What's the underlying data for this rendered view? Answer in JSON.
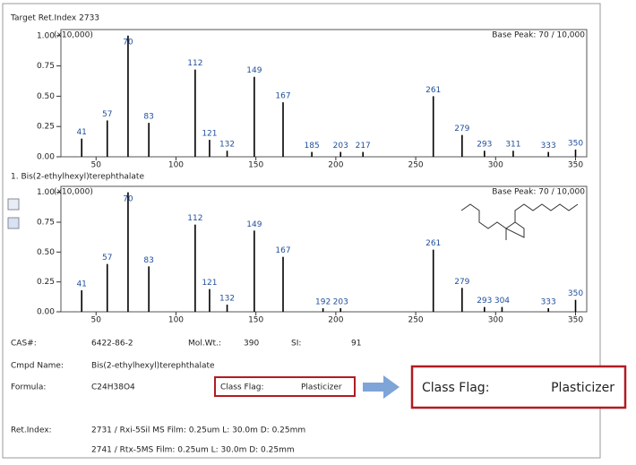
{
  "chart_data": [
    {
      "type": "bar",
      "header": "Target    Ret.Index    2733",
      "scale_label": "(x10,000)",
      "annotation": "Base Peak: 70 / 10,000",
      "x": [
        41,
        57,
        70,
        83,
        112,
        121,
        132,
        149,
        167,
        185,
        203,
        217,
        261,
        279,
        293,
        311,
        333,
        350
      ],
      "values": [
        0.15,
        0.3,
        1.0,
        0.28,
        0.72,
        0.14,
        0.05,
        0.66,
        0.45,
        0.04,
        0.04,
        0.04,
        0.5,
        0.18,
        0.05,
        0.05,
        0.04,
        0.06
      ],
      "color": "#000000",
      "label_color": "#1f4e9c",
      "xlim": [
        28,
        357
      ],
      "ylim": [
        0,
        1.05
      ],
      "xticks": [
        50,
        100,
        150,
        200,
        250,
        300,
        350
      ],
      "yticks": [
        {
          "value": 0,
          "label": "0.00"
        },
        0.25,
        {
          "value": 0.5,
          "label": "0.50"
        },
        0.75,
        {
          "value": 1,
          "label": "1.00"
        }
      ]
    },
    {
      "type": "bar",
      "header": "1. Bis(2-ethylhexyl)terephthalate",
      "scale_label": "(x10,000)",
      "annotation": "Base Peak: 70 / 10,000",
      "x": [
        41,
        57,
        70,
        83,
        112,
        121,
        132,
        149,
        167,
        192,
        203,
        261,
        279,
        293,
        304,
        333,
        350
      ],
      "values": [
        0.18,
        0.4,
        1.0,
        0.38,
        0.73,
        0.19,
        0.06,
        0.68,
        0.46,
        0.03,
        0.03,
        0.52,
        0.2,
        0.04,
        0.04,
        0.03,
        0.1
      ],
      "color": "#000000",
      "label_color": "#1f4e9c",
      "xlim": [
        28,
        357
      ],
      "ylim": [
        0,
        1.05
      ],
      "xticks": [
        50,
        100,
        150,
        200,
        250,
        300,
        350
      ],
      "yticks": [
        {
          "value": 0,
          "label": "0.00"
        },
        0.25,
        {
          "value": 0.5,
          "label": "0.50"
        },
        0.75,
        {
          "value": 1,
          "label": "1.00"
        }
      ]
    }
  ],
  "info": {
    "cas_label": "CAS#:",
    "cas": "6422-86-2",
    "mw_label": "Mol.Wt.:",
    "mw": "390",
    "si_label": "SI:",
    "si": "91",
    "name_label": "Cmpd Name:",
    "name": "Bis(2-ethylhexyl)terephthalate",
    "formula_label": "Formula:",
    "formula": "C24H38O4",
    "flag_label": "Class Flag:",
    "flag": "Plasticizer",
    "ri_label": "Ret.Index:",
    "ri_1": "2731 / Rxi-5Sil MS  Film: 0.25um  L: 30.0m  D: 0.25mm",
    "ri_2": "2741 / Rtx-5MS  Film: 0.25um  L: 30.0m  D: 0.25mm"
  },
  "callout": {
    "label": "Class Flag:",
    "value": "Plasticizer"
  }
}
